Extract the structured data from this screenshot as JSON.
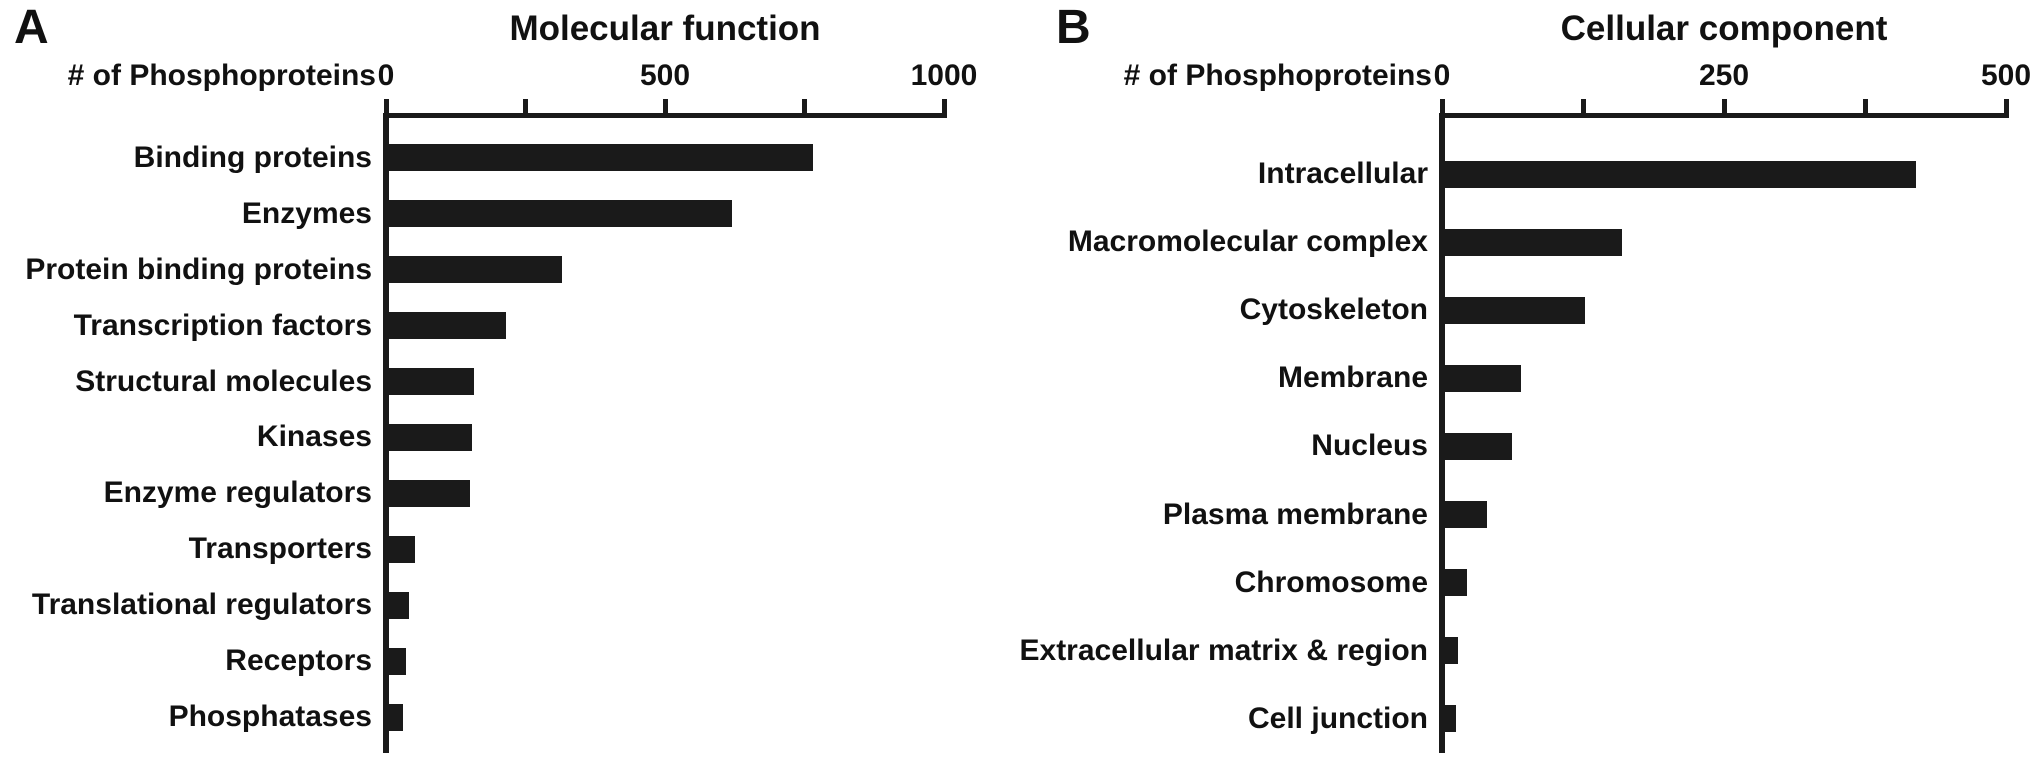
{
  "figure": {
    "background_color": "#ffffff",
    "bar_color": "#1a1a1a",
    "text_color": "#111111"
  },
  "chart_data": [
    {
      "type": "bar",
      "orientation": "horizontal",
      "panel_label": "A",
      "title": "Molecular function",
      "xlabel": "# of Phosphoproteins",
      "xlim": [
        0,
        1000
      ],
      "x_ticks": [
        0,
        250,
        500,
        750,
        1000
      ],
      "x_tick_labels": [
        {
          "value": 0,
          "label": "0"
        },
        {
          "value": 500,
          "label": "500"
        },
        {
          "value": 1000,
          "label": "1000"
        }
      ],
      "grid": false,
      "legend": false,
      "categories": [
        "Binding proteins",
        "Enzymes",
        "Protein binding proteins",
        "Transcription factors",
        "Structural molecules",
        "Kinases",
        "Enzyme regulators",
        "Transporters",
        "Translational regulators",
        "Receptors",
        "Phosphatases"
      ],
      "values": [
        765,
        620,
        315,
        215,
        157,
        155,
        150,
        52,
        42,
        36,
        30
      ]
    },
    {
      "type": "bar",
      "orientation": "horizontal",
      "panel_label": "B",
      "title": "Cellular component",
      "xlabel": "# of Phosphoproteins",
      "xlim": [
        0,
        500
      ],
      "x_ticks": [
        0,
        125,
        250,
        375,
        500
      ],
      "x_tick_labels": [
        {
          "value": 0,
          "label": "0"
        },
        {
          "value": 250,
          "label": "250"
        },
        {
          "value": 500,
          "label": "500"
        }
      ],
      "grid": false,
      "legend": false,
      "categories": [
        "Intracellular",
        "Macromolecular complex",
        "Cytoskeleton",
        "Membrane",
        "Nucleus",
        "Plasma membrane",
        "Chromosome",
        "Extracellular matrix & region",
        "Cell junction"
      ],
      "values": [
        420,
        160,
        127,
        70,
        62,
        40,
        22,
        14,
        12
      ]
    }
  ]
}
